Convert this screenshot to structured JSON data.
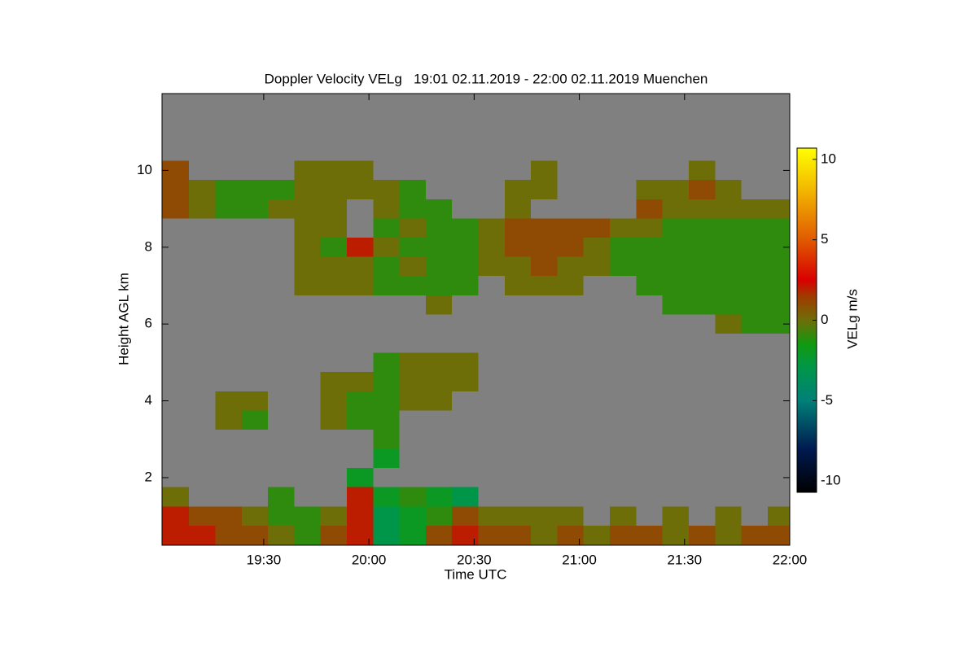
{
  "chart_data": {
    "type": "heatmap",
    "title": "Doppler Velocity VELg   19:01 02.11.2019 - 22:00 02.11.2019 Muenchen",
    "xlabel": "Time UTC",
    "ylabel": "Height AGL km",
    "colorbar_label": "VELg m/s",
    "background": "#808080",
    "xlim": [
      19.0167,
      22.0
    ],
    "xticks": [
      {
        "value": 19.5,
        "label": "19:30"
      },
      {
        "value": 20.0,
        "label": "20:00"
      },
      {
        "value": 20.5,
        "label": "20:30"
      },
      {
        "value": 21.0,
        "label": "21:00"
      },
      {
        "value": 21.5,
        "label": "21:30"
      },
      {
        "value": 22.0,
        "label": "22:00"
      }
    ],
    "ylim": [
      0.24,
      12.0
    ],
    "yticks": [
      2,
      4,
      6,
      8,
      10
    ],
    "clim": [
      -10.7,
      10.7
    ],
    "cticks": [
      10,
      5,
      0,
      -5,
      -10
    ],
    "colorscale": [
      {
        "value": -10.7,
        "color": "#000000"
      },
      {
        "value": -8,
        "color": "#001a50"
      },
      {
        "value": -5,
        "color": "#008078"
      },
      {
        "value": -3,
        "color": "#00964a"
      },
      {
        "value": -1.5,
        "color": "#109a10"
      },
      {
        "value": 0,
        "color": "#6e6e08"
      },
      {
        "value": 1.5,
        "color": "#a03a00"
      },
      {
        "value": 2.5,
        "color": "#d80000"
      },
      {
        "value": 5,
        "color": "#e05a00"
      },
      {
        "value": 8,
        "color": "#f2b400"
      },
      {
        "value": 10.7,
        "color": "#ffff00"
      }
    ],
    "x": [
      19.08,
      19.21,
      19.33,
      19.46,
      19.58,
      19.71,
      19.83,
      19.96,
      20.08,
      20.21,
      20.33,
      20.46,
      20.58,
      20.71,
      20.83,
      20.96,
      21.08,
      21.21,
      21.33,
      21.46,
      21.58,
      21.71,
      21.83,
      21.96
    ],
    "y": [
      0.5,
      1.0,
      1.5,
      2.0,
      2.5,
      3.0,
      3.5,
      4.0,
      4.5,
      5.0,
      5.5,
      6.0,
      6.5,
      7.0,
      7.5,
      8.0,
      8.5,
      9.0,
      9.5,
      10.0,
      10.5,
      11.0,
      11.5
    ],
    "values": [
      [
        2,
        2,
        1,
        1,
        0,
        -1,
        1,
        2,
        -3,
        -2,
        1,
        2,
        1,
        1,
        0,
        1,
        0,
        1,
        1,
        0,
        1,
        0,
        1,
        1
      ],
      [
        2,
        1,
        1,
        0,
        -1,
        -1,
        0,
        2,
        -3,
        -2,
        -1,
        1,
        0,
        0,
        0,
        0,
        null,
        0,
        null,
        0,
        null,
        0,
        null,
        0
      ],
      [
        0,
        null,
        null,
        null,
        -1,
        null,
        null,
        2,
        -2,
        -1,
        -2,
        -3,
        null,
        null,
        null,
        null,
        null,
        null,
        null,
        null,
        null,
        null,
        null,
        null
      ],
      [
        null,
        null,
        null,
        null,
        null,
        null,
        null,
        -2,
        null,
        null,
        null,
        null,
        null,
        null,
        null,
        null,
        null,
        null,
        null,
        null,
        null,
        null,
        null,
        null
      ],
      [
        null,
        null,
        null,
        null,
        null,
        null,
        null,
        null,
        -2,
        null,
        null,
        null,
        null,
        null,
        null,
        null,
        null,
        null,
        null,
        null,
        null,
        null,
        null,
        null
      ],
      [
        null,
        null,
        null,
        null,
        null,
        null,
        null,
        null,
        -1,
        null,
        null,
        null,
        null,
        null,
        null,
        null,
        null,
        null,
        null,
        null,
        null,
        null,
        null,
        null
      ],
      [
        null,
        null,
        0,
        -1,
        null,
        null,
        0,
        -1,
        -1,
        null,
        null,
        null,
        null,
        null,
        null,
        null,
        null,
        null,
        null,
        null,
        null,
        null,
        null,
        null
      ],
      [
        null,
        null,
        0,
        0,
        null,
        null,
        0,
        -1,
        -1,
        0,
        0,
        null,
        null,
        null,
        null,
        null,
        null,
        null,
        null,
        null,
        null,
        null,
        null,
        null
      ],
      [
        null,
        null,
        null,
        null,
        null,
        null,
        0,
        0,
        -1,
        0,
        0,
        0,
        null,
        null,
        null,
        null,
        null,
        null,
        null,
        null,
        null,
        null,
        null,
        null
      ],
      [
        null,
        null,
        null,
        null,
        null,
        null,
        null,
        null,
        -1,
        0,
        0,
        0,
        null,
        null,
        null,
        null,
        null,
        null,
        null,
        null,
        null,
        null,
        null,
        null
      ],
      [
        null,
        null,
        null,
        null,
        null,
        null,
        null,
        null,
        null,
        null,
        null,
        null,
        null,
        null,
        null,
        null,
        null,
        null,
        null,
        null,
        null,
        null,
        null,
        null
      ],
      [
        null,
        null,
        null,
        null,
        null,
        null,
        null,
        null,
        null,
        null,
        null,
        null,
        null,
        null,
        null,
        null,
        null,
        null,
        null,
        null,
        null,
        0,
        -1,
        -1
      ],
      [
        null,
        null,
        null,
        null,
        null,
        null,
        null,
        null,
        null,
        null,
        0,
        null,
        null,
        null,
        null,
        null,
        null,
        null,
        null,
        -1,
        -1,
        -1,
        -1,
        -1
      ],
      [
        null,
        null,
        null,
        null,
        null,
        0,
        0,
        0,
        -1,
        -1,
        -1,
        -1,
        null,
        0,
        0,
        0,
        null,
        null,
        -1,
        -1,
        -1,
        -1,
        -1,
        -1
      ],
      [
        null,
        null,
        null,
        null,
        null,
        0,
        0,
        0,
        -1,
        0,
        -1,
        -1,
        0,
        0,
        1,
        0,
        0,
        -1,
        -1,
        -1,
        -1,
        -1,
        -1,
        -1
      ],
      [
        null,
        null,
        null,
        null,
        null,
        0,
        -1,
        2,
        0,
        -1,
        -1,
        -1,
        0,
        1,
        1,
        1,
        0,
        -1,
        -1,
        -1,
        -1,
        -1,
        -1,
        -1
      ],
      [
        null,
        null,
        null,
        null,
        null,
        0,
        0,
        null,
        -1,
        0,
        -1,
        -1,
        0,
        1,
        1,
        1,
        1,
        0,
        0,
        -1,
        -1,
        -1,
        -1,
        -1
      ],
      [
        1,
        0,
        -1,
        -1,
        0,
        0,
        0,
        null,
        0,
        -1,
        -1,
        null,
        null,
        0,
        null,
        null,
        null,
        null,
        1,
        0,
        0,
        0,
        0,
        0
      ],
      [
        1,
        0,
        -1,
        -1,
        -1,
        0,
        0,
        0,
        0,
        -1,
        null,
        null,
        null,
        0,
        0,
        null,
        null,
        null,
        0,
        0,
        1,
        0,
        null,
        null
      ],
      [
        1,
        null,
        null,
        null,
        null,
        0,
        0,
        0,
        null,
        null,
        null,
        null,
        null,
        null,
        0,
        null,
        null,
        null,
        null,
        null,
        0,
        null,
        null,
        null
      ],
      [
        null,
        null,
        null,
        null,
        null,
        null,
        null,
        null,
        null,
        null,
        null,
        null,
        null,
        null,
        null,
        null,
        null,
        null,
        null,
        null,
        null,
        null,
        null,
        null
      ],
      [
        null,
        null,
        null,
        null,
        null,
        null,
        null,
        null,
        null,
        null,
        null,
        null,
        null,
        null,
        null,
        null,
        null,
        null,
        null,
        null,
        null,
        null,
        null,
        null
      ],
      [
        null,
        null,
        null,
        null,
        null,
        null,
        null,
        null,
        null,
        null,
        null,
        null,
        null,
        null,
        null,
        null,
        null,
        null,
        null,
        null,
        null,
        null,
        null,
        null
      ]
    ]
  }
}
